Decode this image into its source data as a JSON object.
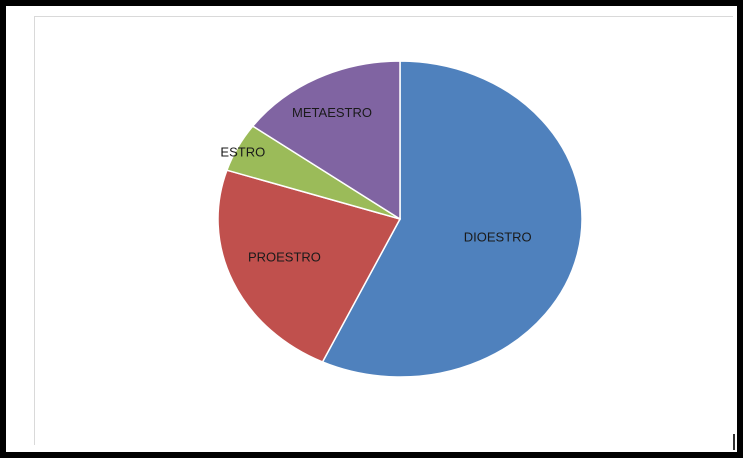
{
  "chart_data": {
    "type": "pie",
    "categories": [
      "DIOESTRO",
      "PROESTRO",
      "ESTRO",
      "METAESTRO"
    ],
    "values": [
      57,
      23,
      5,
      15
    ],
    "colors": [
      "#4f81bd",
      "#c0504d",
      "#9bbb59",
      "#8064a2"
    ],
    "title": "",
    "legend": "none",
    "labels_inside": true
  }
}
